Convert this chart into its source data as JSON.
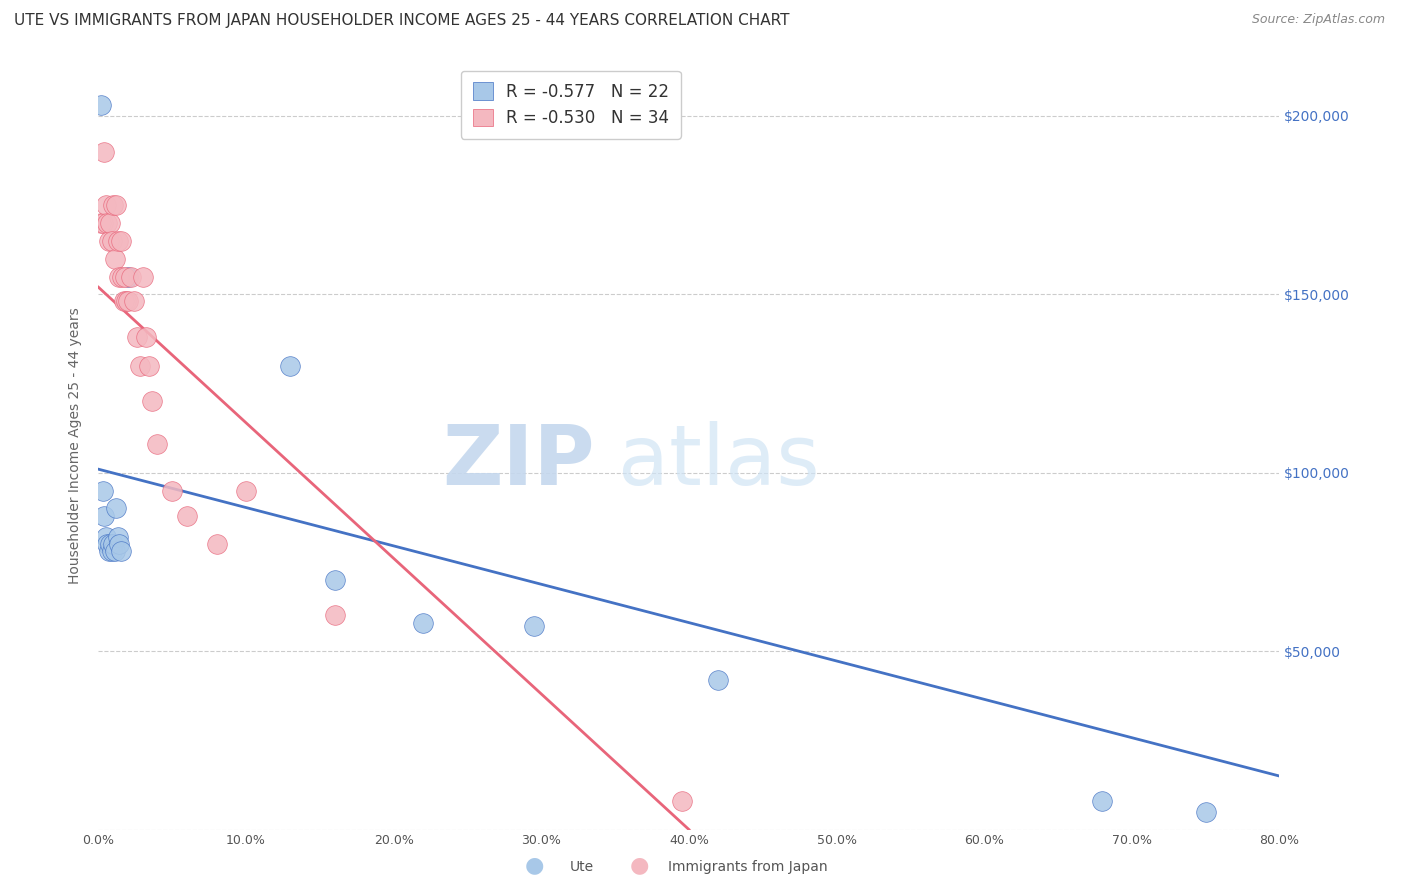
{
  "title": "UTE VS IMMIGRANTS FROM JAPAN HOUSEHOLDER INCOME AGES 25 - 44 YEARS CORRELATION CHART",
  "source": "Source: ZipAtlas.com",
  "ylabel": "Householder Income Ages 25 - 44 years",
  "xlabel_ticks": [
    "0.0%",
    "10.0%",
    "20.0%",
    "30.0%",
    "40.0%",
    "50.0%",
    "60.0%",
    "70.0%",
    "80.0%"
  ],
  "ylabel_ticks": [
    0,
    50000,
    100000,
    150000,
    200000
  ],
  "ylabel_labels": [
    "",
    "$50,000",
    "$100,000",
    "$150,000",
    "$200,000"
  ],
  "ute_color": "#a8c8e8",
  "japan_color": "#f4b8c0",
  "ute_line_color": "#4472c4",
  "japan_line_color": "#e8657a",
  "legend_ute_R": "-0.577",
  "legend_ute_N": "22",
  "legend_japan_R": "-0.530",
  "legend_japan_N": "34",
  "ute_x": [
    0.002,
    0.003,
    0.004,
    0.005,
    0.006,
    0.007,
    0.008,
    0.009,
    0.01,
    0.011,
    0.012,
    0.013,
    0.014,
    0.015,
    0.02,
    0.13,
    0.16,
    0.22,
    0.295,
    0.42,
    0.68,
    0.75
  ],
  "ute_y": [
    203000,
    95000,
    88000,
    82000,
    80000,
    78000,
    80000,
    78000,
    80000,
    78000,
    90000,
    82000,
    80000,
    78000,
    155000,
    130000,
    70000,
    58000,
    57000,
    42000,
    8000,
    5000
  ],
  "japan_x": [
    0.002,
    0.003,
    0.004,
    0.005,
    0.006,
    0.007,
    0.008,
    0.009,
    0.01,
    0.011,
    0.012,
    0.013,
    0.014,
    0.015,
    0.016,
    0.017,
    0.018,
    0.019,
    0.02,
    0.022,
    0.024,
    0.026,
    0.028,
    0.03,
    0.032,
    0.034,
    0.036,
    0.04,
    0.05,
    0.06,
    0.08,
    0.1,
    0.16,
    0.395
  ],
  "japan_y": [
    170000,
    170000,
    190000,
    175000,
    170000,
    165000,
    170000,
    165000,
    175000,
    160000,
    175000,
    165000,
    155000,
    165000,
    155000,
    148000,
    155000,
    148000,
    148000,
    155000,
    148000,
    138000,
    130000,
    155000,
    138000,
    130000,
    120000,
    108000,
    95000,
    88000,
    80000,
    95000,
    60000,
    8000
  ],
  "ute_line_x0": 0.0,
  "ute_line_y0": 101000,
  "ute_line_x1": 0.8,
  "ute_line_y1": 15000,
  "japan_line_x0": 0.0,
  "japan_line_y0": 152000,
  "japan_line_x1": 0.4,
  "japan_line_y1": 0,
  "xlim": [
    0,
    0.8
  ],
  "ylim": [
    0,
    215000
  ],
  "bg_color": "#ffffff",
  "grid_color": "#cccccc",
  "title_fontsize": 11,
  "axis_label_fontsize": 10,
  "tick_fontsize": 9
}
